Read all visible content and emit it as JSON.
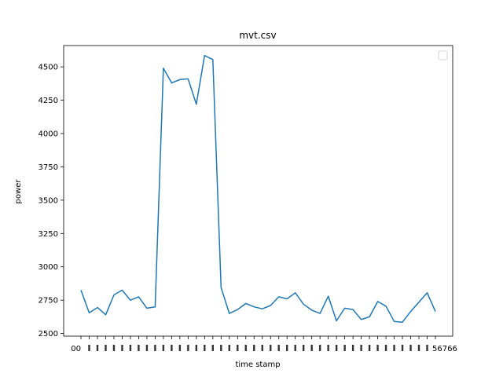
{
  "chart_data": {
    "type": "line",
    "title": "mvt.csv",
    "xlabel": "time stamp",
    "ylabel": "power",
    "ylim": [
      2480,
      4660
    ],
    "yticks": [
      2500,
      2750,
      3000,
      3250,
      3500,
      3750,
      4000,
      4250,
      4500
    ],
    "ytick_labels": [
      "2500",
      "2750",
      "3000",
      "3250",
      "3500",
      "3750",
      "4000",
      "4250",
      "4500"
    ],
    "x_first_label": "00",
    "x_last_label": "56766",
    "grid": false,
    "legend": {
      "placement": "top-right",
      "entries": []
    },
    "series": [
      {
        "color": "#1f77b4",
        "values": [
          2825,
          2655,
          2695,
          2640,
          2790,
          2825,
          2750,
          2775,
          2690,
          2700,
          4490,
          4380,
          4405,
          4410,
          4220,
          4585,
          4555,
          2845,
          2650,
          2680,
          2725,
          2700,
          2685,
          2710,
          2775,
          2760,
          2805,
          2720,
          2675,
          2650,
          2780,
          2595,
          2690,
          2680,
          2605,
          2625,
          2740,
          2705,
          2590,
          2585,
          2665,
          2735,
          2805,
          2665
        ]
      }
    ]
  }
}
